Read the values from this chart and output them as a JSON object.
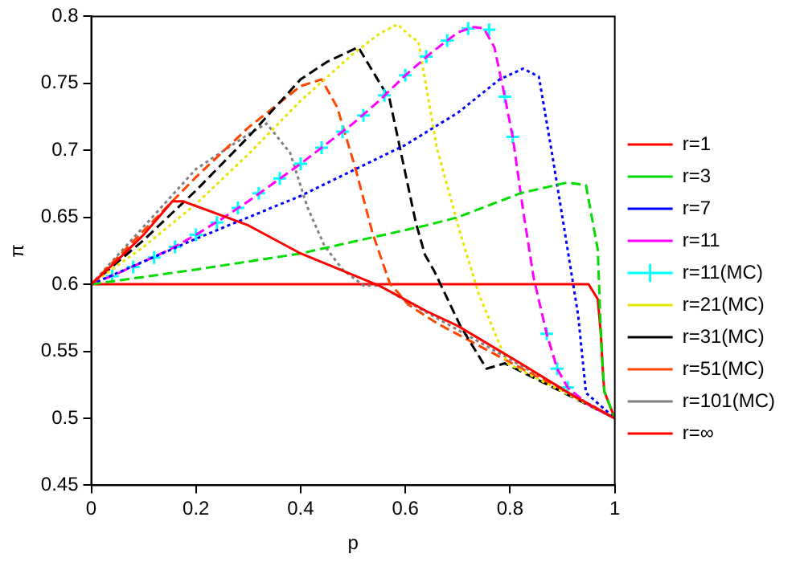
{
  "chart_data": {
    "type": "line",
    "xlabel": "p",
    "ylabel": "π",
    "xlim": [
      0,
      1
    ],
    "ylim": [
      0.45,
      0.8
    ],
    "xticks": [
      0,
      0.2,
      0.4,
      0.6,
      0.8,
      1
    ],
    "yticks": [
      0.45,
      0.5,
      0.55,
      0.6,
      0.65,
      0.7,
      0.75,
      0.8
    ],
    "grid": false,
    "legend": "right",
    "marker": "none",
    "series": [
      {
        "name": "r=1",
        "color": "#ff0000",
        "line_style": "solid",
        "x": [
          0,
          0.05,
          0.1,
          0.155,
          0.175,
          0.3,
          0.4,
          0.55,
          0.64,
          0.7,
          0.82,
          0.92,
          1
        ],
        "values": [
          0.6,
          0.618,
          0.637,
          0.662,
          0.662,
          0.644,
          0.623,
          0.599,
          0.58,
          0.569,
          0.541,
          0.517,
          0.5
        ]
      },
      {
        "name": "r=3",
        "color": "#00dd00",
        "line_style": "dashed",
        "x": [
          0,
          0.2,
          0.4,
          0.64,
          0.7,
          0.82,
          0.91,
          0.945,
          0.9675,
          0.973,
          0.977,
          0.98,
          1
        ],
        "values": [
          0.6,
          0.611,
          0.623,
          0.644,
          0.65,
          0.668,
          0.676,
          0.674,
          0.626,
          0.569,
          0.537,
          0.52,
          0.5
        ]
      },
      {
        "name": "r=7",
        "color": "#0000ff",
        "line_style": "dotted",
        "x": [
          0,
          0.2,
          0.4,
          0.6,
          0.7,
          0.78,
          0.825,
          0.855,
          0.88,
          0.905,
          0.93,
          0.945,
          1
        ],
        "values": [
          0.6,
          0.634,
          0.666,
          0.704,
          0.728,
          0.753,
          0.761,
          0.755,
          0.698,
          0.638,
          0.577,
          0.519,
          0.5
        ]
      },
      {
        "name": "r=11",
        "color": "#ff00ff",
        "line_style": "dashed",
        "x": [
          0,
          0.05,
          0.1,
          0.15,
          0.2,
          0.25,
          0.3,
          0.35,
          0.4,
          0.45,
          0.5,
          0.55,
          0.6,
          0.65,
          0.7,
          0.73,
          0.75,
          0.77,
          0.79,
          0.805,
          0.825,
          0.845,
          0.87,
          0.89,
          0.91,
          0.95,
          1
        ],
        "values": [
          0.6,
          0.608,
          0.617,
          0.626,
          0.637,
          0.649,
          0.662,
          0.676,
          0.69,
          0.705,
          0.72,
          0.737,
          0.756,
          0.773,
          0.788,
          0.792,
          0.791,
          0.777,
          0.74,
          0.71,
          0.655,
          0.605,
          0.563,
          0.537,
          0.523,
          0.51,
          0.5
        ]
      },
      {
        "name": "r=11(MC)",
        "type": "scatter",
        "marker": "cross",
        "color": "#00ffff",
        "x": [
          0.04,
          0.08,
          0.12,
          0.16,
          0.2,
          0.24,
          0.28,
          0.32,
          0.36,
          0.4,
          0.44,
          0.48,
          0.52,
          0.56,
          0.6,
          0.64,
          0.68,
          0.72,
          0.76,
          0.79,
          0.805,
          0.87,
          0.89,
          0.91
        ],
        "values": [
          0.606,
          0.613,
          0.62,
          0.628,
          0.637,
          0.646,
          0.657,
          0.668,
          0.679,
          0.69,
          0.702,
          0.714,
          0.726,
          0.741,
          0.756,
          0.77,
          0.782,
          0.791,
          0.79,
          0.74,
          0.71,
          0.563,
          0.537,
          0.523
        ]
      },
      {
        "name": "r=21(MC)",
        "color": "#e6e600",
        "line_style": "dotted",
        "x": [
          0,
          0.1,
          0.2,
          0.3,
          0.4,
          0.5,
          0.55,
          0.585,
          0.61,
          0.625,
          0.66,
          0.705,
          0.74,
          0.795,
          0.85,
          1
        ],
        "values": [
          0.6,
          0.628,
          0.66,
          0.697,
          0.737,
          0.772,
          0.787,
          0.794,
          0.785,
          0.781,
          0.702,
          0.638,
          0.593,
          0.541,
          0.53,
          0.5
        ]
      },
      {
        "name": "r=31(MC)",
        "color": "#000000",
        "line_style": "dashed",
        "x": [
          0,
          0.1,
          0.2,
          0.3,
          0.4,
          0.45,
          0.51,
          0.57,
          0.62,
          0.6375,
          0.655,
          0.705,
          0.755,
          0.79,
          1
        ],
        "values": [
          0.6,
          0.633,
          0.67,
          0.71,
          0.753,
          0.766,
          0.777,
          0.738,
          0.646,
          0.622,
          0.61,
          0.569,
          0.537,
          0.541,
          0.5
        ]
      },
      {
        "name": "r=51(MC)",
        "color": "#ff4500",
        "line_style": "dashed",
        "x": [
          0,
          0.1,
          0.2,
          0.3,
          0.4,
          0.44,
          0.47,
          0.505,
          0.5375,
          0.57,
          0.605,
          0.66,
          1
        ],
        "values": [
          0.6,
          0.64,
          0.68,
          0.717,
          0.748,
          0.753,
          0.732,
          0.686,
          0.638,
          0.601,
          0.585,
          0.571,
          0.5
        ]
      },
      {
        "name": "r=101(MC)",
        "color": "#808080",
        "line_style": "dotted",
        "x": [
          0,
          0.1,
          0.2,
          0.3,
          0.335,
          0.38,
          0.4125,
          0.445,
          0.48,
          0.52,
          0.55,
          1
        ],
        "values": [
          0.6,
          0.643,
          0.686,
          0.712,
          0.72,
          0.698,
          0.658,
          0.629,
          0.611,
          0.599,
          0.599,
          0.5
        ]
      },
      {
        "name": "r=∞",
        "color": "#ff0000",
        "line_style": "solid",
        "x": [
          0,
          0.95,
          0.9675,
          0.973,
          0.977,
          0.98,
          1
        ],
        "values": [
          0.6,
          0.6,
          0.589,
          0.565,
          0.537,
          0.52,
          0.5
        ]
      }
    ]
  }
}
